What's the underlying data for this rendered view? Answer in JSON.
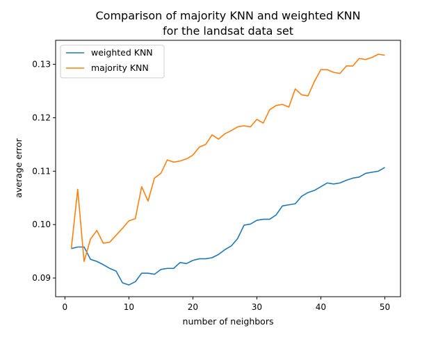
{
  "chart_data": {
    "type": "line",
    "title_lines": [
      "Comparison of majority KNN and weighted KNN",
      "for the landsat data set"
    ],
    "xlabel": "number of neighbors",
    "ylabel": "average error",
    "xlim": [
      -1.45,
      52.45
    ],
    "ylim": [
      0.0865,
      0.1345
    ],
    "xticks": [
      0,
      10,
      20,
      30,
      40,
      50
    ],
    "xtick_labels": [
      "0",
      "10",
      "20",
      "30",
      "40",
      "50"
    ],
    "yticks": [
      0.09,
      0.1,
      0.11,
      0.12,
      0.13
    ],
    "ytick_labels": [
      "0.09",
      "0.10",
      "0.11",
      "0.12",
      "0.13"
    ],
    "grid": false,
    "legend_position": "top-left",
    "x": [
      1,
      2,
      3,
      4,
      5,
      6,
      7,
      8,
      9,
      10,
      11,
      12,
      13,
      14,
      15,
      16,
      17,
      18,
      19,
      20,
      21,
      22,
      23,
      24,
      25,
      26,
      27,
      28,
      29,
      30,
      31,
      32,
      33,
      34,
      35,
      36,
      37,
      38,
      39,
      40,
      41,
      42,
      43,
      44,
      45,
      46,
      47,
      48,
      49,
      50
    ],
    "series": [
      {
        "name": "weighted KNN",
        "color": "#1f77b4",
        "values": [
          0.0955,
          0.0958,
          0.0958,
          0.0935,
          0.0931,
          0.0925,
          0.0918,
          0.0913,
          0.0891,
          0.0887,
          0.0893,
          0.0909,
          0.0909,
          0.0907,
          0.0916,
          0.0918,
          0.0918,
          0.0929,
          0.0927,
          0.0933,
          0.0936,
          0.0936,
          0.0938,
          0.0944,
          0.0953,
          0.096,
          0.0974,
          0.0999,
          0.1001,
          0.1008,
          0.101,
          0.101,
          0.1018,
          0.1035,
          0.1037,
          0.1039,
          0.1053,
          0.106,
          0.1064,
          0.1071,
          0.1078,
          0.1076,
          0.1078,
          0.1083,
          0.1087,
          0.1089,
          0.1096,
          0.1098,
          0.11,
          0.1107
        ]
      },
      {
        "name": "majority KNN",
        "color": "#ff7f0e",
        "values": [
          0.0955,
          0.1066,
          0.0931,
          0.0973,
          0.0989,
          0.0965,
          0.0967,
          0.098,
          0.0993,
          0.1007,
          0.1011,
          0.1071,
          0.1044,
          0.1087,
          0.1096,
          0.1121,
          0.1117,
          0.1119,
          0.1123,
          0.113,
          0.1145,
          0.115,
          0.1168,
          0.116,
          0.117,
          0.1176,
          0.1183,
          0.1185,
          0.1183,
          0.1197,
          0.119,
          0.1215,
          0.1223,
          0.1225,
          0.122,
          0.1254,
          0.1243,
          0.1241,
          0.1268,
          0.129,
          0.129,
          0.1285,
          0.1283,
          0.1297,
          0.1297,
          0.1311,
          0.1309,
          0.1313,
          0.1319,
          0.1317
        ]
      }
    ]
  }
}
